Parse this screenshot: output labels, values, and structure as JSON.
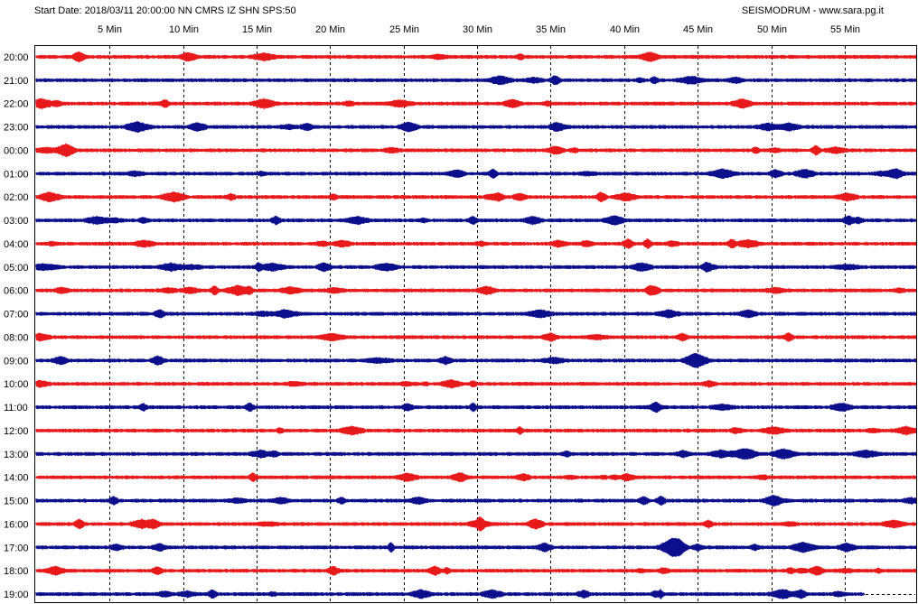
{
  "header": {
    "start_info": "Start Date: 2018/03/11 20:00:00 NN CMRS IZ SHN SPS:50",
    "source": "SEISMODRUM - www.sara.pg.it"
  },
  "chart_data": {
    "type": "line",
    "title": "Start Date: 2018/03/11 20:00:00 NN CMRS IZ SHN SPS:50",
    "x_ticks": [
      "5 Min",
      "10 Min",
      "15 Min",
      "20 Min",
      "25 Min",
      "30 Min",
      "35 Min",
      "40 Min",
      "45 Min",
      "50 Min",
      "55 Min"
    ],
    "x_tick_values": [
      5,
      10,
      15,
      20,
      25,
      30,
      35,
      40,
      45,
      50,
      55
    ],
    "xlim": [
      0,
      60
    ],
    "grid": "vertical dashed every 5 min",
    "rows": [
      {
        "label": "20:00",
        "color": "#e8191b",
        "extent": 60
      },
      {
        "label": "21:00",
        "color": "#0b0f8c",
        "extent": 60
      },
      {
        "label": "22:00",
        "color": "#e8191b",
        "extent": 60
      },
      {
        "label": "23:00",
        "color": "#0b0f8c",
        "extent": 60
      },
      {
        "label": "00:00",
        "color": "#e8191b",
        "extent": 60
      },
      {
        "label": "01:00",
        "color": "#0b0f8c",
        "extent": 60
      },
      {
        "label": "02:00",
        "color": "#e8191b",
        "extent": 60
      },
      {
        "label": "03:00",
        "color": "#0b0f8c",
        "extent": 60
      },
      {
        "label": "04:00",
        "color": "#e8191b",
        "extent": 60
      },
      {
        "label": "05:00",
        "color": "#0b0f8c",
        "extent": 60
      },
      {
        "label": "06:00",
        "color": "#e8191b",
        "extent": 60
      },
      {
        "label": "07:00",
        "color": "#0b0f8c",
        "extent": 60
      },
      {
        "label": "08:00",
        "color": "#e8191b",
        "extent": 60
      },
      {
        "label": "09:00",
        "color": "#0b0f8c",
        "extent": 60
      },
      {
        "label": "10:00",
        "color": "#e8191b",
        "extent": 60
      },
      {
        "label": "11:00",
        "color": "#0b0f8c",
        "extent": 60
      },
      {
        "label": "12:00",
        "color": "#e8191b",
        "extent": 60
      },
      {
        "label": "13:00",
        "color": "#0b0f8c",
        "extent": 60
      },
      {
        "label": "14:00",
        "color": "#e8191b",
        "extent": 60
      },
      {
        "label": "15:00",
        "color": "#0b0f8c",
        "extent": 60
      },
      {
        "label": "16:00",
        "color": "#e8191b",
        "extent": 60
      },
      {
        "label": "17:00",
        "color": "#0b0f8c",
        "extent": 60
      },
      {
        "label": "18:00",
        "color": "#e8191b",
        "extent": 60
      },
      {
        "label": "19:00",
        "color": "#0b0f8c",
        "extent": 56.3
      }
    ]
  }
}
